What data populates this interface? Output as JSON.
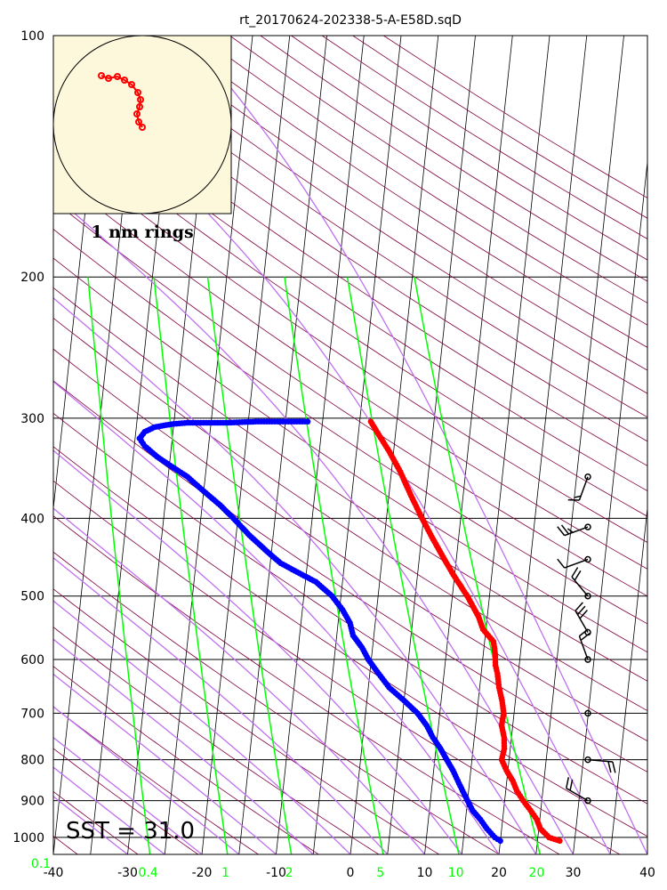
{
  "chart_data": {
    "type": "scatter",
    "title": "rt_20170624-202338-5-A-E58D.sqD",
    "y_axis": {
      "scale": "log",
      "range": [
        1000,
        100
      ],
      "tick_labels": [
        "100",
        "200",
        "300",
        "400",
        "500",
        "600",
        "700",
        "800",
        "900",
        "1000"
      ]
    },
    "x_axis": {
      "range": [
        -40,
        40
      ],
      "tick_labels": [
        "-40",
        "-30",
        "-20",
        "-10",
        "0",
        "10",
        "20",
        "30",
        "40"
      ]
    },
    "mixing_ratio_labels": [
      "0.1",
      "0.4",
      "1",
      "2",
      "5",
      "10",
      "20"
    ],
    "sst_label": "SST = 31.0",
    "inset": {
      "label": "1 nm rings",
      "track_points": [
        [
          -0.46,
          0.55
        ],
        [
          -0.38,
          0.52
        ],
        [
          -0.28,
          0.54
        ],
        [
          -0.2,
          0.5
        ],
        [
          -0.12,
          0.45
        ],
        [
          -0.05,
          0.36
        ],
        [
          -0.02,
          0.28
        ],
        [
          -0.03,
          0.2
        ],
        [
          -0.06,
          0.12
        ],
        [
          -0.04,
          0.03
        ],
        [
          0.0,
          -0.03
        ]
      ]
    },
    "series": [
      {
        "color": "#ff0000",
        "values": [
          [
            1010,
            28.0
          ],
          [
            1000,
            26.5
          ],
          [
            975,
            25.2
          ],
          [
            950,
            24.6
          ],
          [
            925,
            23.6
          ],
          [
            900,
            22.5
          ],
          [
            875,
            21.5
          ],
          [
            850,
            20.8
          ],
          [
            825,
            19.8
          ],
          [
            800,
            19.0
          ],
          [
            775,
            19.2
          ],
          [
            750,
            19.0
          ],
          [
            725,
            18.5
          ],
          [
            700,
            18.6
          ],
          [
            675,
            18.2
          ],
          [
            650,
            17.6
          ],
          [
            625,
            17.2
          ],
          [
            610,
            16.8
          ],
          [
            590,
            16.6
          ],
          [
            570,
            16.2
          ],
          [
            550,
            14.6
          ],
          [
            530,
            13.8
          ],
          [
            500,
            12.0
          ],
          [
            470,
            9.8
          ],
          [
            450,
            8.4
          ],
          [
            425,
            6.6
          ],
          [
            400,
            4.8
          ],
          [
            375,
            3.0
          ],
          [
            350,
            1.2
          ],
          [
            330,
            -0.6
          ],
          [
            315,
            -2.2
          ],
          [
            303,
            -3.5
          ]
        ]
      },
      {
        "color": "#0000ff",
        "values": [
          [
            1010,
            20.0
          ],
          [
            1000,
            19.2
          ],
          [
            975,
            18.0
          ],
          [
            950,
            17.0
          ],
          [
            925,
            15.8
          ],
          [
            900,
            15.0
          ],
          [
            875,
            14.2
          ],
          [
            850,
            13.4
          ],
          [
            825,
            12.6
          ],
          [
            800,
            11.6
          ],
          [
            775,
            10.6
          ],
          [
            750,
            9.4
          ],
          [
            725,
            8.4
          ],
          [
            700,
            7.0
          ],
          [
            675,
            5.0
          ],
          [
            650,
            2.8
          ],
          [
            625,
            1.2
          ],
          [
            600,
            -0.4
          ],
          [
            580,
            -1.4
          ],
          [
            560,
            -2.8
          ],
          [
            540,
            -3.4
          ],
          [
            520,
            -4.6
          ],
          [
            500,
            -6.2
          ],
          [
            480,
            -8.6
          ],
          [
            470,
            -10.6
          ],
          [
            455,
            -13.6
          ],
          [
            440,
            -15.6
          ],
          [
            420,
            -18.2
          ],
          [
            400,
            -20.6
          ],
          [
            385,
            -22.6
          ],
          [
            370,
            -25.0
          ],
          [
            355,
            -27.4
          ],
          [
            345,
            -29.6
          ],
          [
            335,
            -31.8
          ],
          [
            325,
            -33.6
          ],
          [
            318,
            -34.4
          ],
          [
            312,
            -33.8
          ],
          [
            308,
            -32.6
          ],
          [
            306,
            -31.0
          ],
          [
            305,
            -30.0
          ],
          [
            304,
            -28.2
          ],
          [
            304,
            -26.0
          ],
          [
            304,
            -23.0
          ],
          [
            303,
            -19.0
          ],
          [
            303,
            -12.0
          ]
        ]
      }
    ],
    "wind_barbs": [
      {
        "pressure": 355,
        "direction": 200,
        "speed_kt": 15
      },
      {
        "pressure": 410,
        "direction": 250,
        "speed_kt": 25
      },
      {
        "pressure": 450,
        "direction": 250,
        "speed_kt": 10
      },
      {
        "pressure": 500,
        "direction": 320,
        "speed_kt": 20
      },
      {
        "pressure": 555,
        "direction": 330,
        "speed_kt": 30
      },
      {
        "pressure": 600,
        "direction": 340,
        "speed_kt": 20
      },
      {
        "pressure": 700,
        "direction": 0,
        "speed_kt": 0
      },
      {
        "pressure": 800,
        "direction": 95,
        "speed_kt": 20
      },
      {
        "pressure": 900,
        "direction": 300,
        "speed_kt": 20
      }
    ],
    "colors": {
      "temperature": "#ff0000",
      "dewpoint": "#0000ff",
      "dry_adiabats": "#800040",
      "moist_adiabats": "#c070f0",
      "mixing_ratio": "#00ff00",
      "isotherms": "#000000",
      "inset_background": "#fdf7dc"
    }
  }
}
